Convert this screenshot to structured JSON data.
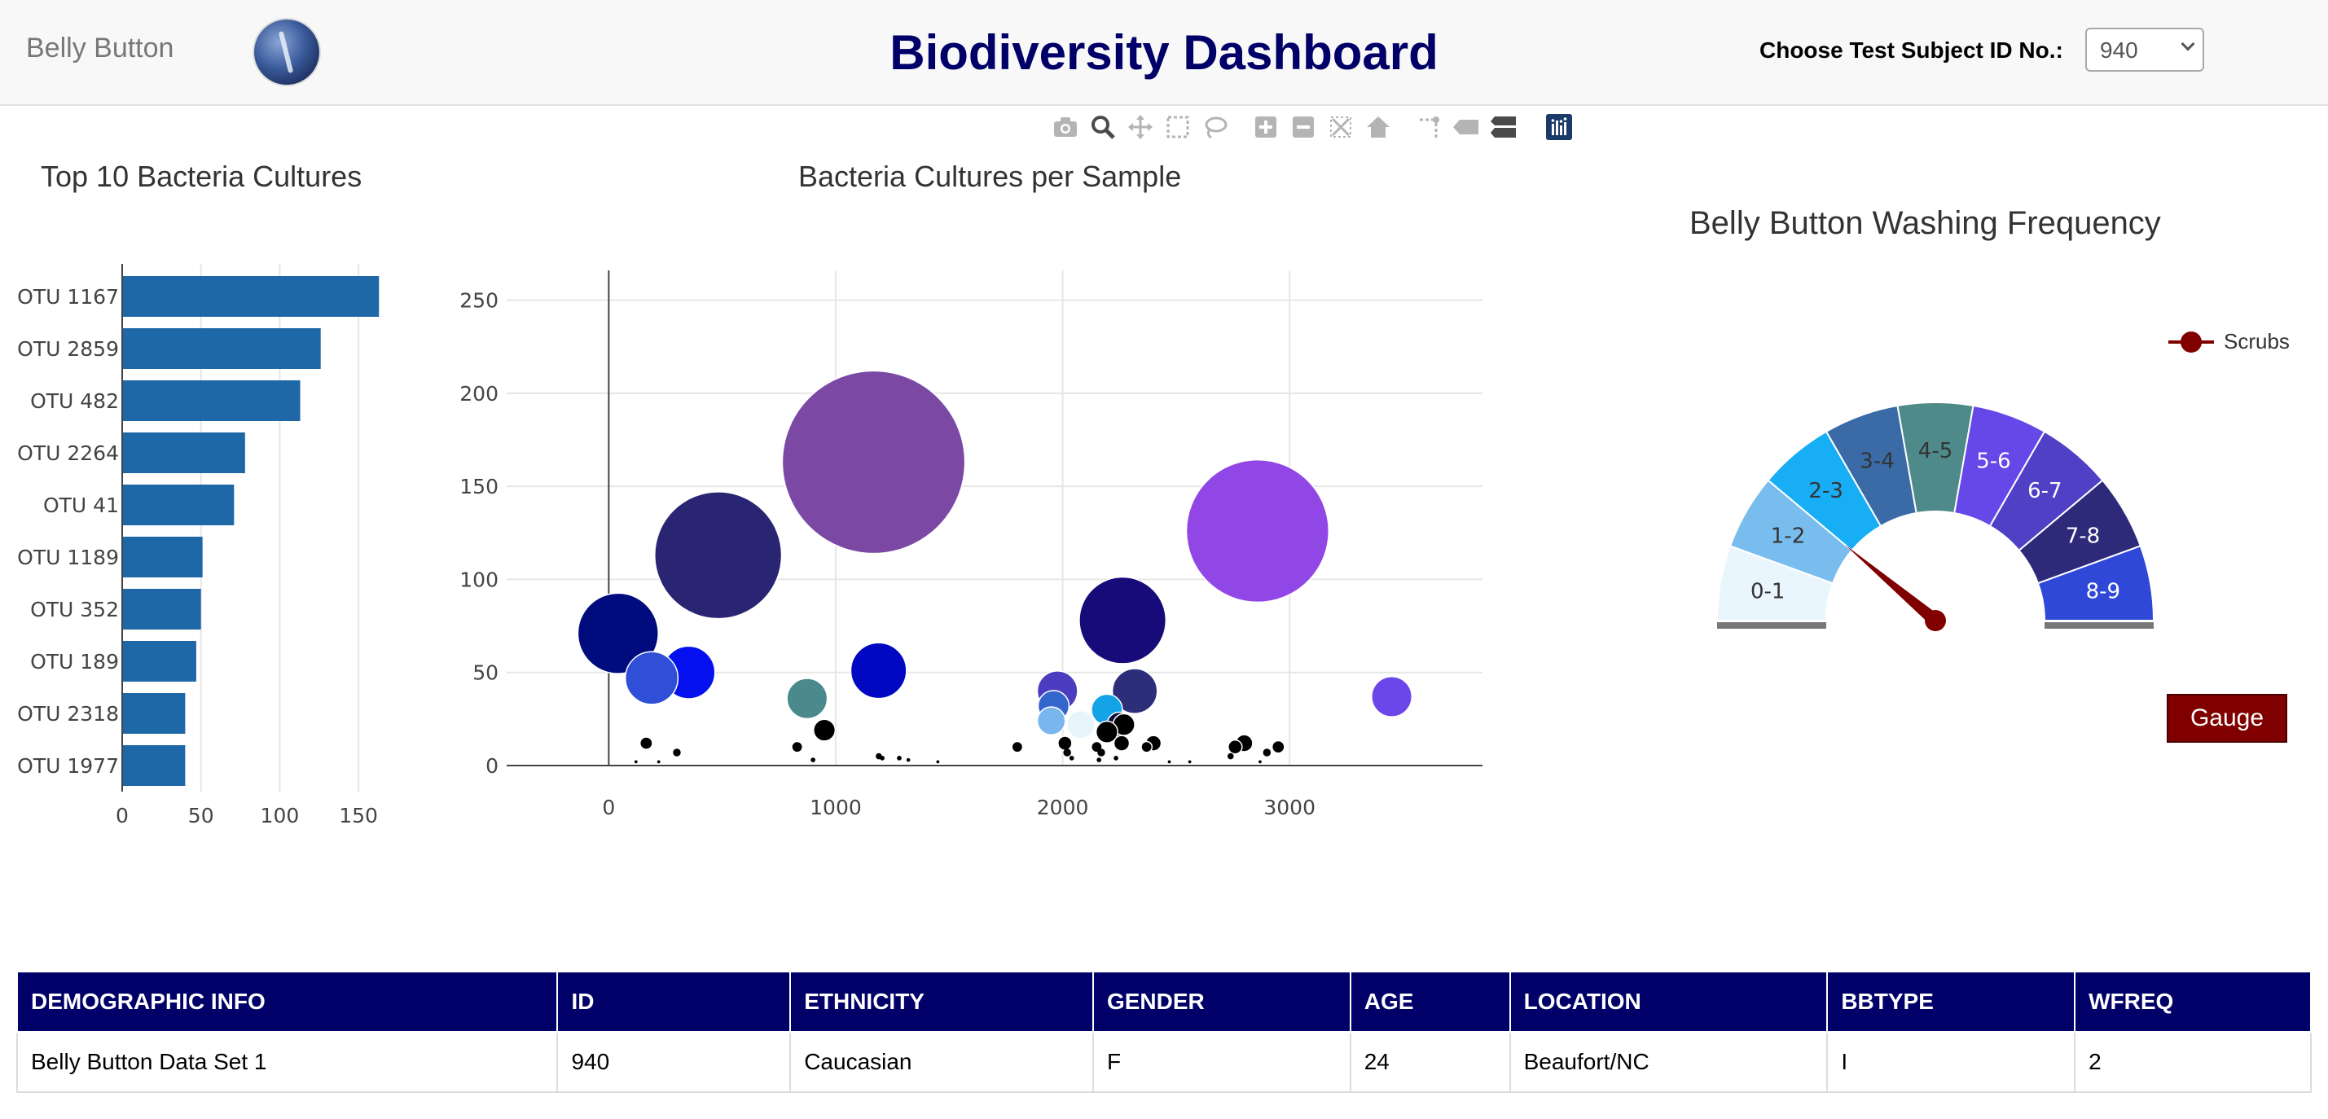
{
  "header": {
    "brand": "Belly Button",
    "logo_icon": "belly-button-logo",
    "title": "Biodiversity Dashboard",
    "subject_label": "Choose Test Subject ID No.:",
    "subject_selected": "940"
  },
  "modebar": {
    "icons": [
      "camera-icon",
      "zoom-icon",
      "pan-icon",
      "box-select-icon",
      "lasso-icon",
      "zoom-in-icon",
      "zoom-out-icon",
      "autoscale-icon",
      "reset-axes-icon",
      "spike-lines-icon",
      "hover-closest-icon",
      "hover-compare-icon",
      "plotly-logo-icon"
    ]
  },
  "chart_data": [
    {
      "type": "bar",
      "orientation": "horizontal",
      "title": "Top 10 Bacteria Cultures",
      "categories": [
        "OTU 1167",
        "OTU 2859",
        "OTU 482",
        "OTU 2264",
        "OTU 41",
        "OTU 1189",
        "OTU 352",
        "OTU 189",
        "OTU 2318",
        "OTU 1977"
      ],
      "values": [
        163,
        126,
        113,
        78,
        71,
        51,
        50,
        47,
        40,
        40
      ],
      "xticks": [
        "0",
        "50",
        "100",
        "150"
      ],
      "xlim": [
        0,
        167
      ],
      "color": "#1f68a8",
      "grid": true
    },
    {
      "type": "scatter",
      "subtype": "bubble",
      "title": "Bacteria Cultures per Sample",
      "xticks": [
        "0",
        "1000",
        "2000",
        "3000"
      ],
      "yticks": [
        "0",
        "50",
        "100",
        "150",
        "200",
        "250"
      ],
      "xlim": [
        -450,
        3850
      ],
      "ylim": [
        0,
        266
      ],
      "grid": true,
      "points": [
        {
          "x": 1167,
          "y": 163,
          "r": 59,
          "color": "#7b49a4"
        },
        {
          "x": 2859,
          "y": 126,
          "r": 46,
          "color": "#9147e6"
        },
        {
          "x": 482,
          "y": 113,
          "r": 41,
          "color": "#2a2573"
        },
        {
          "x": 2264,
          "y": 78,
          "r": 28,
          "color": "#170b7a"
        },
        {
          "x": 41,
          "y": 71,
          "r": 26,
          "color": "#000b7d"
        },
        {
          "x": 1189,
          "y": 51,
          "r": 18,
          "color": "#0008c2"
        },
        {
          "x": 352,
          "y": 50,
          "r": 17,
          "color": "#0411ee"
        },
        {
          "x": 189,
          "y": 47,
          "r": 17,
          "color": "#2e4fd6"
        },
        {
          "x": 2318,
          "y": 40,
          "r": 14.5,
          "color": "#2c2e7a"
        },
        {
          "x": 3450,
          "y": 37,
          "r": 13,
          "color": "#6b46e8"
        },
        {
          "x": 874,
          "y": 36,
          "r": 13,
          "color": "#4a8a8c"
        },
        {
          "x": 1977,
          "y": 40,
          "r": 13,
          "color": "#4b3dc0"
        },
        {
          "x": 1960,
          "y": 32,
          "r": 10,
          "color": "#3366cc"
        },
        {
          "x": 2195,
          "y": 30,
          "r": 10,
          "color": "#14a3e6"
        },
        {
          "x": 1950,
          "y": 24,
          "r": 9,
          "color": "#7ab6ee"
        },
        {
          "x": 2080,
          "y": 22,
          "r": 9,
          "color": "#e8f4fb"
        },
        {
          "x": 2250,
          "y": 22,
          "r": 8,
          "color": "#0a0a40"
        },
        {
          "x": 950,
          "y": 19,
          "r": 7,
          "color": "#000000"
        },
        {
          "x": 2270,
          "y": 22,
          "r": 7,
          "color": "#000000"
        },
        {
          "x": 2195,
          "y": 18,
          "r": 7,
          "color": "#000000"
        },
        {
          "x": 2800,
          "y": 12,
          "r": 5.5,
          "color": "#000000"
        },
        {
          "x": 2260,
          "y": 12,
          "r": 5,
          "color": "#000000"
        },
        {
          "x": 2400,
          "y": 12,
          "r": 5,
          "color": "#000000"
        },
        {
          "x": 2010,
          "y": 12,
          "r": 4.5,
          "color": "#000000"
        },
        {
          "x": 165,
          "y": 12,
          "r": 4,
          "color": "#000000"
        },
        {
          "x": 2760,
          "y": 10,
          "r": 4.5,
          "color": "#000000"
        },
        {
          "x": 2950,
          "y": 10,
          "r": 4,
          "color": "#000000"
        },
        {
          "x": 830,
          "y": 10,
          "r": 3.5,
          "color": "#000000"
        },
        {
          "x": 1800,
          "y": 10,
          "r": 3.5,
          "color": "#000000"
        },
        {
          "x": 2370,
          "y": 10,
          "r": 3.5,
          "color": "#000000"
        },
        {
          "x": 2150,
          "y": 10,
          "r": 3.5,
          "color": "#000000"
        },
        {
          "x": 2900,
          "y": 7,
          "r": 2.5,
          "color": "#000000"
        },
        {
          "x": 300,
          "y": 7,
          "r": 2.5,
          "color": "#000000"
        },
        {
          "x": 2020,
          "y": 7,
          "r": 2.5,
          "color": "#000000"
        },
        {
          "x": 2170,
          "y": 7,
          "r": 2.5,
          "color": "#000000"
        },
        {
          "x": 2740,
          "y": 5,
          "r": 2,
          "color": "#000000"
        },
        {
          "x": 1190,
          "y": 5,
          "r": 2,
          "color": "#000000"
        },
        {
          "x": 2040,
          "y": 4,
          "r": 1.5,
          "color": "#000000"
        },
        {
          "x": 1205,
          "y": 4,
          "r": 1.5,
          "color": "#000000"
        },
        {
          "x": 1280,
          "y": 4,
          "r": 1.5,
          "color": "#000000"
        },
        {
          "x": 2235,
          "y": 4,
          "r": 1.5,
          "color": "#000000"
        },
        {
          "x": 900,
          "y": 3,
          "r": 1.5,
          "color": "#000000"
        },
        {
          "x": 1320,
          "y": 3,
          "r": 1.2,
          "color": "#000000"
        },
        {
          "x": 2160,
          "y": 3,
          "r": 1.5,
          "color": "#000000"
        },
        {
          "x": 1450,
          "y": 2,
          "r": 1,
          "color": "#000000"
        },
        {
          "x": 120,
          "y": 2,
          "r": 1,
          "color": "#000000"
        },
        {
          "x": 220,
          "y": 2,
          "r": 1,
          "color": "#000000"
        },
        {
          "x": 2470,
          "y": 2,
          "r": 1,
          "color": "#000000"
        },
        {
          "x": 2560,
          "y": 2,
          "r": 1,
          "color": "#000000"
        },
        {
          "x": 2870,
          "y": 2,
          "r": 1,
          "color": "#000000"
        }
      ]
    },
    {
      "type": "pie",
      "subtype": "gauge",
      "title": "Belly Button Washing Frequency",
      "segments": [
        "0-1",
        "1-2",
        "2-3",
        "3-4",
        "4-5",
        "5-6",
        "6-7",
        "7-8",
        "8-9"
      ],
      "segment_colors": [
        "#eaf6fd",
        "#79bcee",
        "#18aef5",
        "#3a6ba7",
        "#4f8a8a",
        "#6648e8",
        "#5040c6",
        "#2e2a7a",
        "#2f48d8"
      ],
      "segment_text_colors": [
        "#333333",
        "#333333",
        "#333333",
        "#333333",
        "#333333",
        "#ffffff",
        "#ffffff",
        "#ffffff",
        "#ffffff"
      ],
      "value": 2,
      "range": [
        0,
        9
      ],
      "needle_color": "#800000",
      "legend": "Scrubs",
      "legend_placement": "top-right"
    }
  ],
  "gauge_button": "Gauge",
  "table": {
    "headers": [
      "DEMOGRAPHIC INFO",
      "ID",
      "ETHNICITY",
      "GENDER",
      "AGE",
      "LOCATION",
      "BBTYPE",
      "WFREQ"
    ],
    "rows": [
      [
        "Belly Button Data Set 1",
        "940",
        "Caucasian",
        "F",
        "24",
        "Beaufort/NC",
        "I",
        "2"
      ]
    ]
  }
}
